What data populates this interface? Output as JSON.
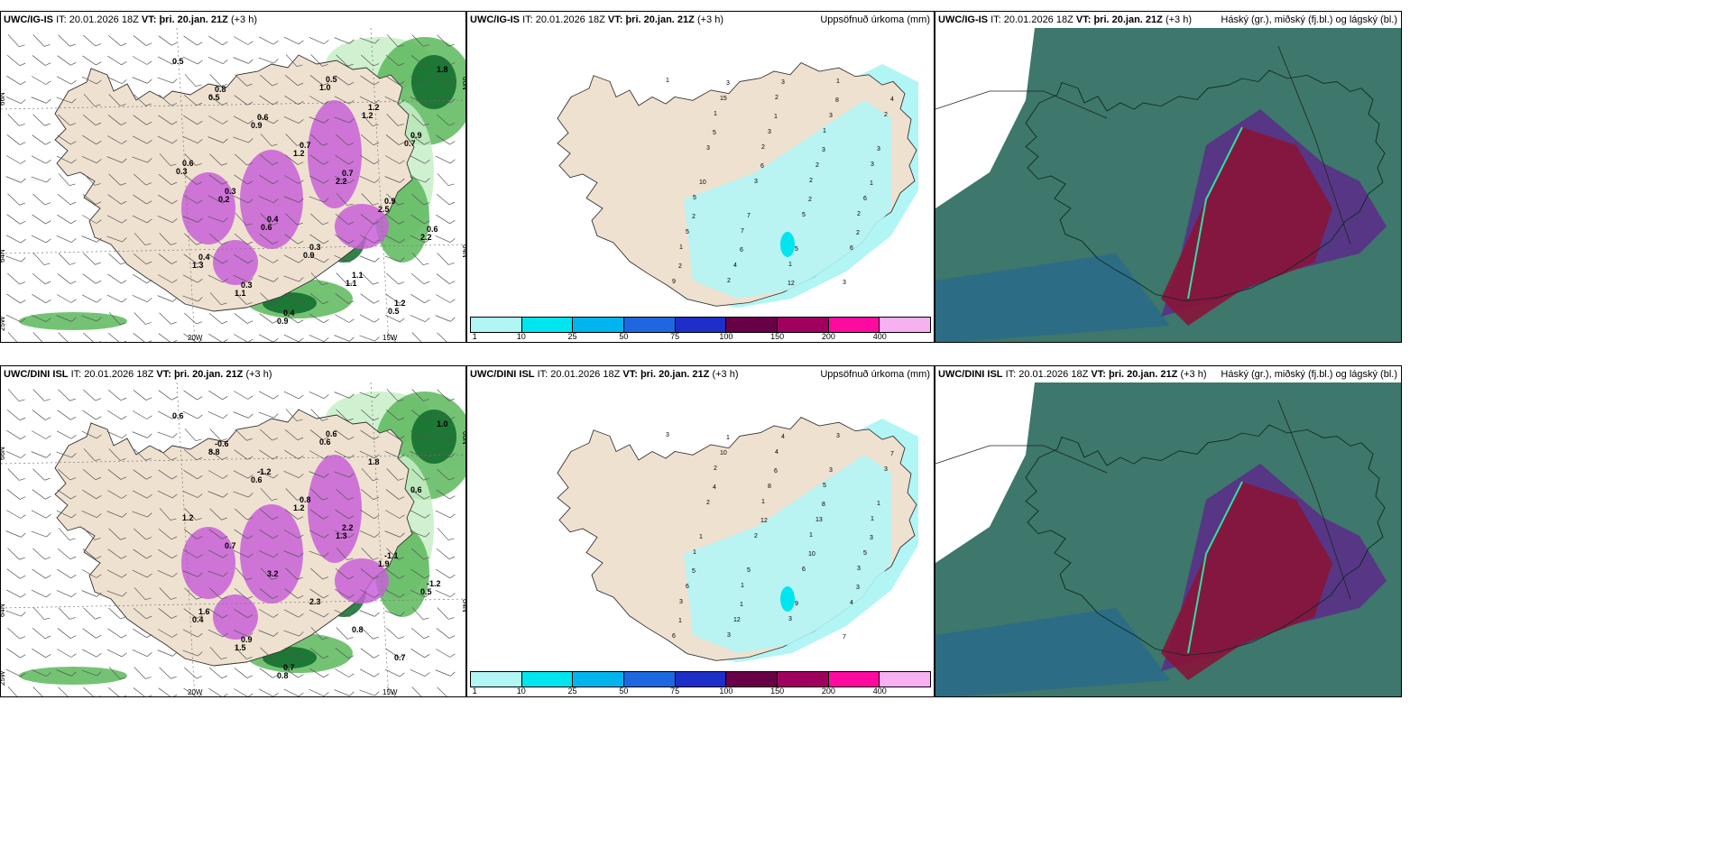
{
  "rows": [
    {
      "model": "UWC/IG-IS",
      "it_label": "IT:",
      "it_value": "20.01.2026 18Z",
      "vt_label": "VT:",
      "vt_value": "þri. 20.jan. 21Z",
      "lead": "(+3 h)",
      "precip_title": "Uppsöfnuð úrkoma (mm)",
      "cloud_title": "Háský (gr.), miðský (fj.bl.) og lágský (bl.)",
      "wind_values": [
        "0.5",
        "0.8",
        "0.6",
        "0.7",
        "0.7",
        "0.9",
        "0.6",
        "0.4",
        "0.3",
        "0.4",
        "0.5",
        "1.2",
        "0.9",
        "0.6",
        "0.3",
        "0.4",
        "0.3",
        "1.1",
        "1.2",
        "1.8",
        "0.5",
        "0.9",
        "1.2",
        "2.2",
        "2.5",
        "2.2",
        "1.3",
        "1.1",
        "0.9",
        "1.0",
        "1.2",
        "0.7",
        "0.3",
        "0.2",
        "0.6",
        "0.9",
        "1.1",
        "0.5"
      ],
      "precip_values": [
        "1",
        "1",
        "2",
        "2",
        "2",
        "1",
        "2",
        "2",
        "1",
        "3",
        "5",
        "7",
        "1",
        "1",
        "2",
        "3",
        "3",
        "5",
        "6",
        "9",
        "15",
        "3",
        "2",
        "6",
        "5",
        "4",
        "3",
        "3",
        "3",
        "10",
        "7",
        "5",
        "3",
        "4",
        "5",
        "6",
        "2",
        "2",
        "2",
        "3",
        "1",
        "3",
        "1",
        "2",
        "6",
        "12",
        "8"
      ]
    },
    {
      "model": "UWC/DINI ISL",
      "it_label": "IT:",
      "it_value": "20.01.2026 18Z",
      "vt_label": "VT:",
      "vt_value": "þri. 20.jan. 21Z",
      "lead": "(+3 h)",
      "precip_title": "Uppsöfnuð úrkoma (mm)",
      "cloud_title": "Háský (gr.), miðský (fj.bl.) og lágský (bl.)",
      "wind_values": [
        "0.6",
        "-0.6",
        "-1.2",
        "0.8",
        "2.2",
        "-1.1",
        "-1.2",
        "1.6",
        "0.9",
        "0.7",
        "0.6",
        "1.8",
        "0.6",
        "1.2",
        "0.7",
        "3.2",
        "2.3",
        "0.8",
        "0.7",
        "1.0",
        "8.8",
        "0.6",
        "1.2",
        "1.3",
        "1.9",
        "0.5",
        "0.4",
        "1.5",
        "0.8",
        "0.6"
      ],
      "precip_values": [
        "3",
        "2",
        "1",
        "1",
        "3",
        "3",
        "3",
        "4",
        "5",
        "1",
        "1",
        "1",
        "3",
        "3",
        "3",
        "2",
        "2",
        "6",
        "4",
        "6",
        "10",
        "8",
        "13",
        "5",
        "6",
        "12",
        "4",
        "3",
        "1",
        "1",
        "5",
        "9",
        "7",
        "7",
        "4",
        "12",
        "10",
        "3",
        "1",
        "1",
        "6",
        "8",
        "3",
        "5",
        "1"
      ]
    }
  ],
  "wind_axis": {
    "lat_labels": [
      "66N",
      "64N",
      "25W"
    ],
    "lon_labels": [
      "20W",
      "15W"
    ],
    "lat_right": [
      "66N",
      "64N"
    ]
  },
  "legend": {
    "ticks": [
      "1",
      "10",
      "25",
      "50",
      "75",
      "100",
      "150",
      "200",
      "400"
    ],
    "colors": [
      "#b2f5f5",
      "#00e5ee",
      "#00b5ee",
      "#1d68e0",
      "#1e2ec8",
      "#680048",
      "#a0005e",
      "#ff0a9f",
      "#f7b0f0"
    ]
  },
  "colors": {
    "land": "#efe1d0",
    "precip_light": "#b2f5f5",
    "precip_mid": "#00e5ee",
    "wind_green_light": "#c8efc8",
    "wind_green_mid": "#5cb85c",
    "wind_green_dark": "#0e6a2a",
    "wind_magenta": "#c860d8",
    "cloud_high": "#2e6b5e",
    "cloud_mid": "#5a2a8a",
    "cloud_low": "#8a1438"
  }
}
